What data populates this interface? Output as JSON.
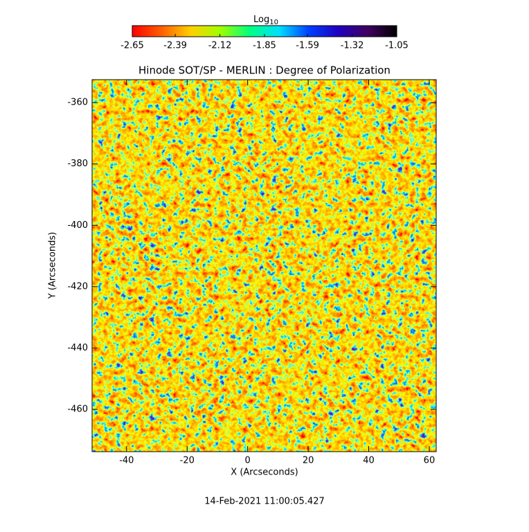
{
  "chart_data": {
    "type": "heatmap",
    "title": "Hinode SOT/SP - MERLIN : Degree of Polarization",
    "xlabel": "X (Arcseconds)",
    "ylabel": "Y (Arcseconds)",
    "xlim": [
      -51.4,
      62.3
    ],
    "xticks": [
      -40,
      -20,
      0,
      20,
      40,
      60
    ],
    "ylim": [
      -473.8,
      -352.5
    ],
    "yticks": [
      -460,
      -440,
      -420,
      -400,
      -380,
      -360
    ],
    "colorbar_label": "Log",
    "colorbar_label_sub": "10",
    "colorbar_lim": [
      -2.65,
      -1.05
    ],
    "colorbar_ticks": [
      -2.65,
      -2.39,
      -2.12,
      -1.85,
      -1.59,
      -1.32,
      -1.05
    ],
    "colormap": [
      "#ff0000",
      "#ff6000",
      "#ffd000",
      "#a0ff00",
      "#00ff80",
      "#00e0ff",
      "#0040ff",
      "#2000c0",
      "#400060",
      "#000000"
    ],
    "footer": "14-Feb-2021 11:00:05.427"
  }
}
